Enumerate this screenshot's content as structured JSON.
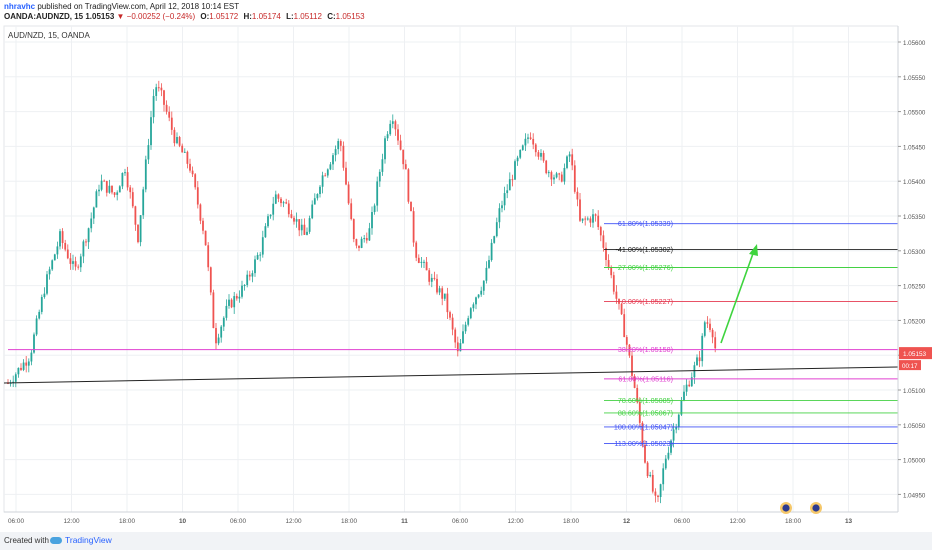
{
  "header": {
    "user": "nhravhc",
    "published": "published on TradingView.com, April 12, 2018 10:14 EST",
    "symbol_line": "OANDA:AUDNZD, 15",
    "last": "1.05153",
    "change_arrow": "▼",
    "change": "−0.00252 (−0.24%)",
    "open_label": "O:",
    "open": "1.05172",
    "high_label": "H:",
    "high": "1.05174",
    "low_label": "L:",
    "low": "1.05112",
    "close_label": "C:",
    "close": "1.05153"
  },
  "chart": {
    "legend": "AUD/NZD, 15, OANDA",
    "price_axis": [
      "1.05600",
      "1.05550",
      "1.05500",
      "1.05450",
      "1.05400",
      "1.05350",
      "1.05300",
      "1.05250",
      "1.05200",
      "1.05150",
      "1.05100",
      "1.05050",
      "1.05000",
      "1.04950",
      "1.04900",
      "1.04850"
    ],
    "time_axis": [
      "06:00",
      "12:00",
      "18:00",
      "10",
      "06:00",
      "12:00",
      "18:00",
      "11",
      "06:00",
      "12:00",
      "18:00",
      "12",
      "06:00",
      "12:00",
      "18:00",
      "13"
    ],
    "current_price_label": "1.05153",
    "countdown_label": "00:17",
    "fib_levels": [
      {
        "label": "-61.80%(1.05339)",
        "price": 1.05339,
        "color": "#3f51f5"
      },
      {
        "label": "-41.00%(1.05302)",
        "price": 1.05302,
        "color": "#222222"
      },
      {
        "label": "-27.00%(1.05276)",
        "price": 1.05276,
        "color": "#43d143"
      },
      {
        "label": "0.00%(1.05227)",
        "price": 1.05227,
        "color": "#e53950"
      },
      {
        "label": "38.20%(1.05158)",
        "price": 1.05158,
        "color": "#e040d0"
      },
      {
        "label": "61.80%(1.05116)",
        "price": 1.05116,
        "color": "#e040d0"
      },
      {
        "label": "78.60%(1.05085)",
        "price": 1.05085,
        "color": "#43d143"
      },
      {
        "label": "88.60%(1.05067)",
        "price": 1.05067,
        "color": "#43d143"
      },
      {
        "label": "100.00%(1.05047)",
        "price": 1.05047,
        "color": "#3f51f5"
      },
      {
        "label": "113.00%(1.05023)",
        "price": 1.05023,
        "color": "#3f51f5"
      }
    ],
    "colors": {
      "up": "#26a69a",
      "down": "#ef5350",
      "grid": "#eef0f3",
      "arrow": "#3ed43e",
      "price_tag": "#ef5350"
    }
  },
  "footer": {
    "created_with": "Created with",
    "brand": "TradingView"
  }
}
